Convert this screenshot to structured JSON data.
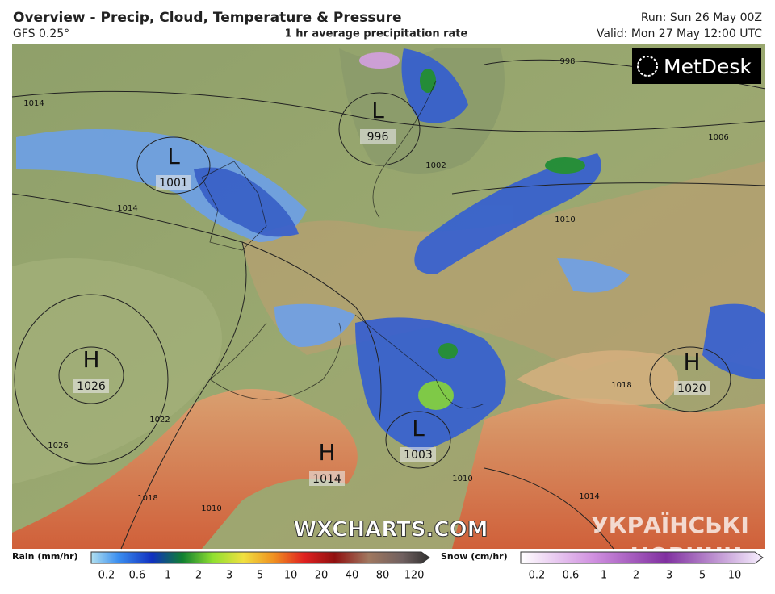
{
  "header": {
    "title": "Overview - Precip, Cloud, Temperature & Pressure",
    "model": "GFS 0.25°",
    "subtitle": "1 hr average precipitation rate",
    "run": "Run: Sun 26 May 00Z",
    "valid": "Valid: Mon 27 May 12:00 UTC"
  },
  "logo": "MetDesk",
  "watermarks": [
    "WXCHARTS.COM",
    "УКРАЇНСЬКІ",
    "НОВИНИ"
  ],
  "pressure_centers": [
    {
      "letter": "L",
      "value": "1001"
    },
    {
      "letter": "L",
      "value": "996"
    },
    {
      "letter": "H",
      "value": "1026"
    },
    {
      "letter": "H",
      "value": "1020"
    },
    {
      "letter": "H",
      "value": "1014"
    },
    {
      "letter": "L",
      "value": "1003"
    }
  ],
  "isobar_labels": [
    "1014",
    "998",
    "1006",
    "1002",
    "1014",
    "1010",
    "1018",
    "1022",
    "1026",
    "1018",
    "1010",
    "1010",
    "1014"
  ],
  "legend": {
    "rain": {
      "label": "Rain (mm/hr)",
      "ticks": [
        "0.2",
        "0.6",
        "1",
        "2",
        "3",
        "5",
        "10",
        "20",
        "40",
        "80",
        "120"
      ]
    },
    "snow": {
      "label": "Snow (cm/hr)",
      "ticks": [
        "0.2",
        "0.6",
        "1",
        "2",
        "3",
        "5",
        "10"
      ]
    }
  }
}
